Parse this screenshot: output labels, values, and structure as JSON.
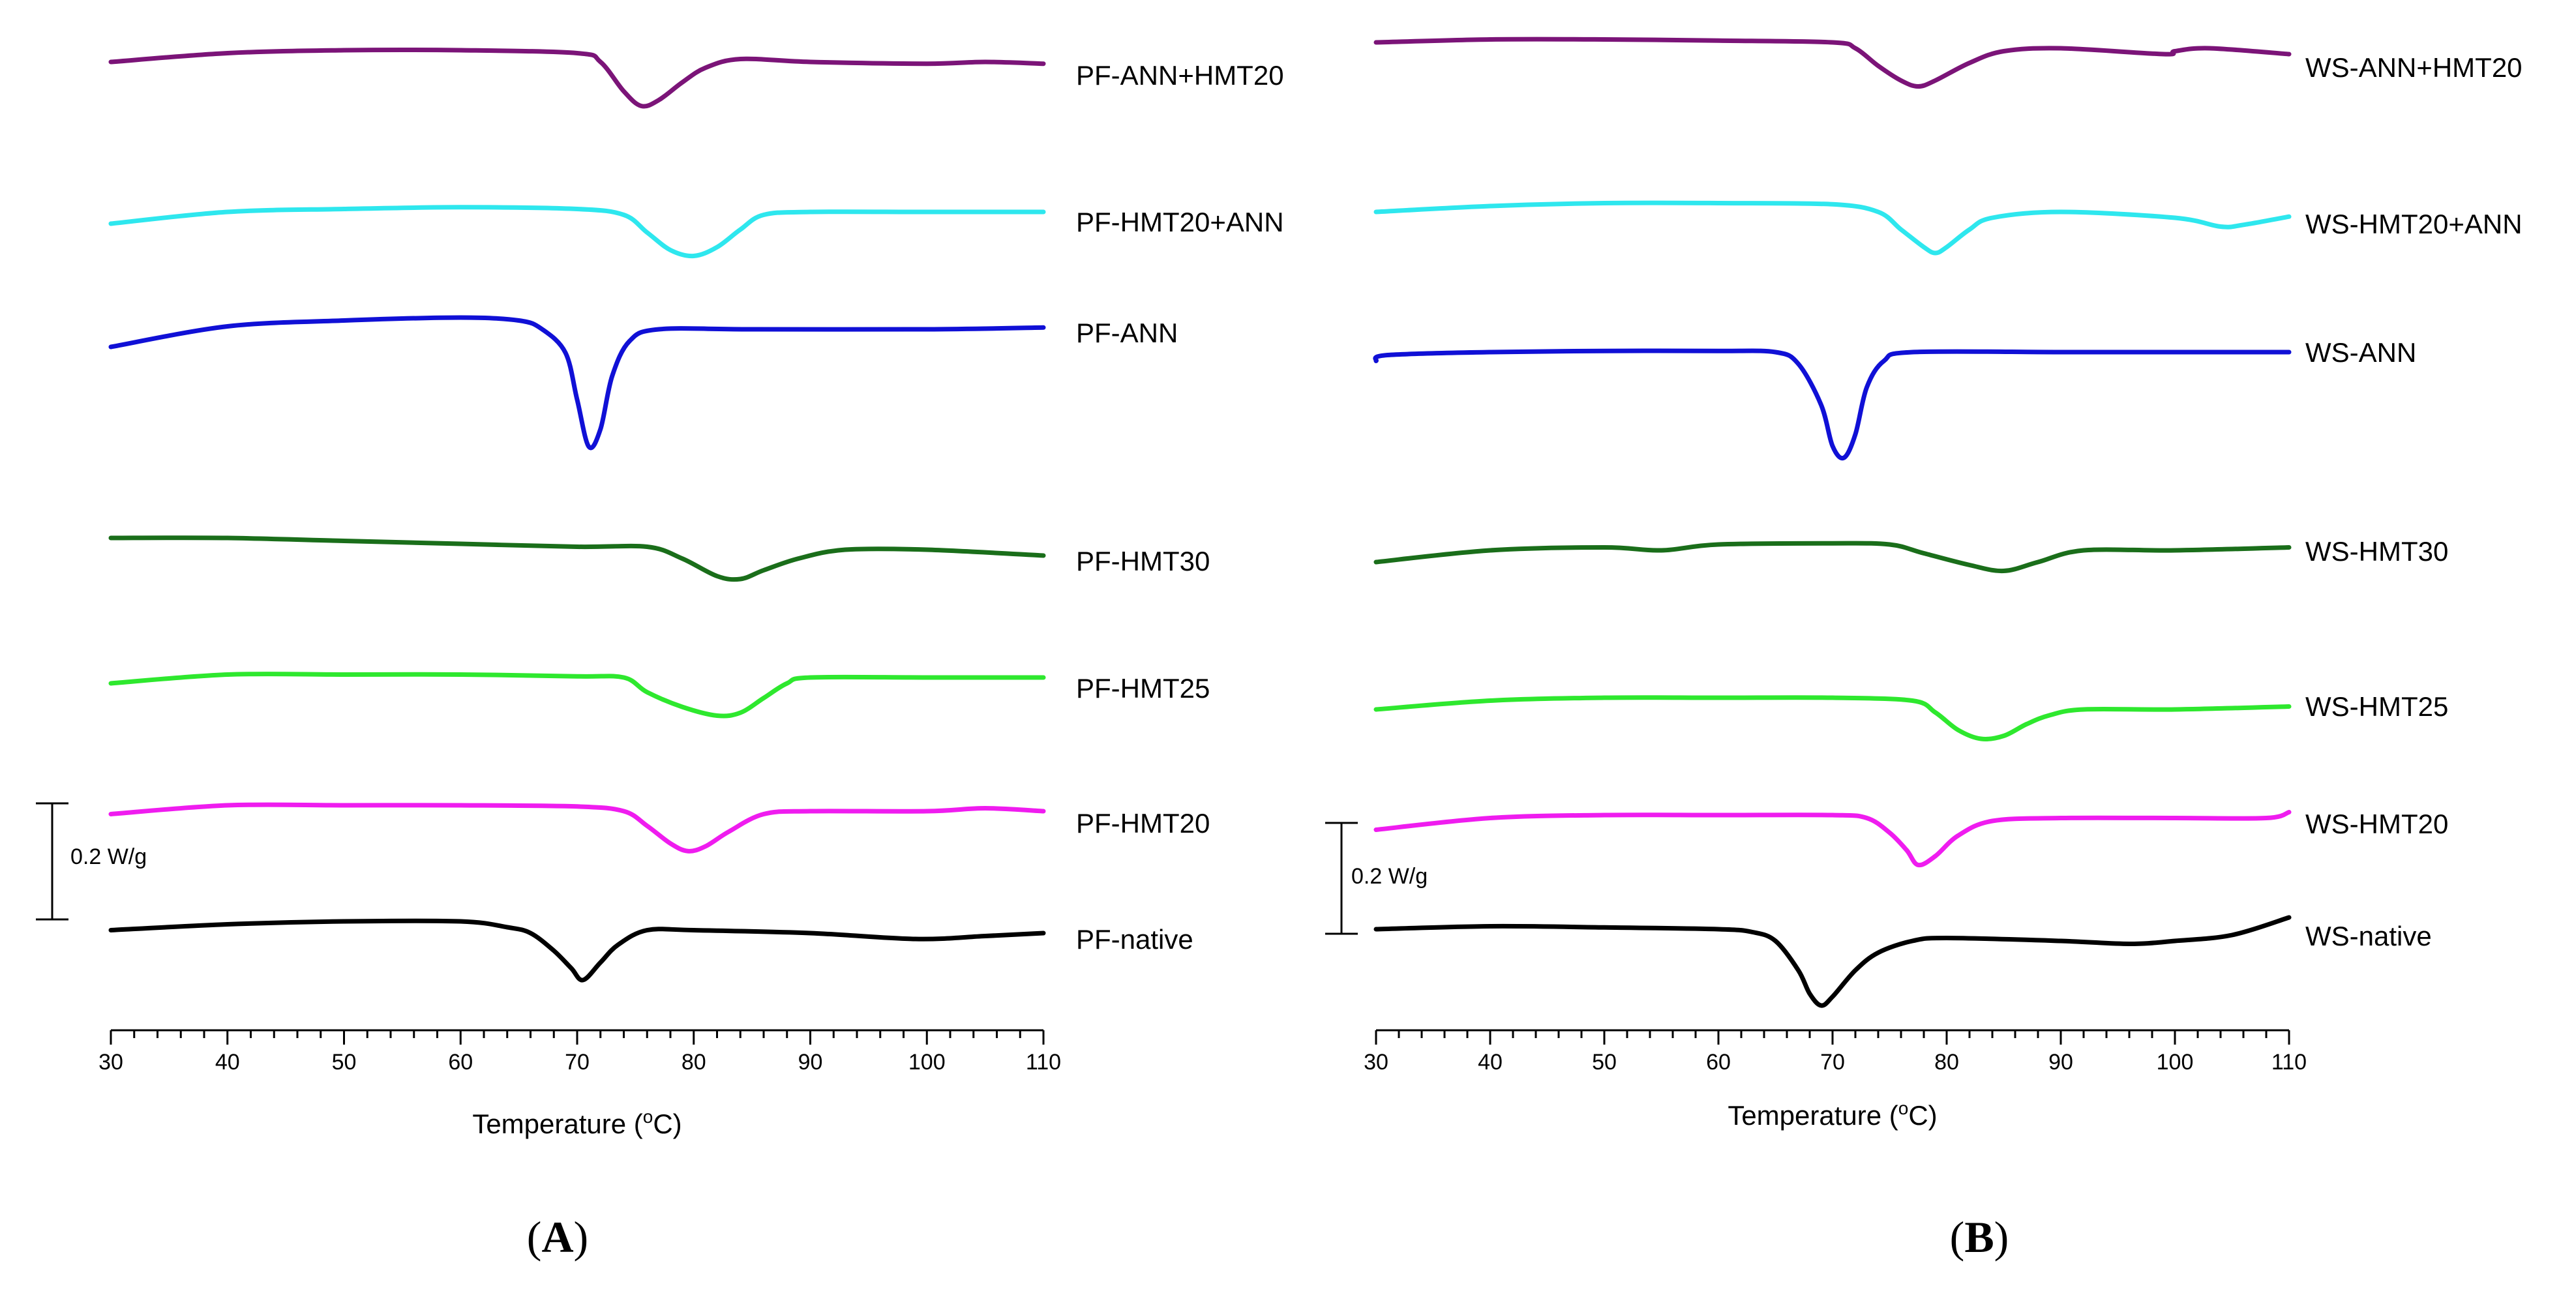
{
  "chart_data": [
    {
      "type": "line",
      "panel": "A",
      "panel_label": {
        "open": "(",
        "letter": "A",
        "close": ")"
      },
      "xlabel": "Temperature (",
      "xlabel_unit": "o",
      "xlabel_tail": "C)",
      "ylabel": "",
      "xlim": [
        30,
        110
      ],
      "x_ticks": [
        "30",
        "40",
        "50",
        "60",
        "70",
        "80",
        "90",
        "100",
        "110"
      ],
      "scale_bar": "0.2 W/g",
      "series": [
        {
          "name": "PF-ANN+HMT20",
          "color": "#7b1478",
          "points": [
            [
              30,
              0.0
            ],
            [
              40,
              0.015
            ],
            [
              50,
              0.02
            ],
            [
              60,
              0.02
            ],
            [
              70,
              0.015
            ],
            [
              72,
              0.0
            ],
            [
              74,
              -0.05
            ],
            [
              75.5,
              -0.075
            ],
            [
              77,
              -0.065
            ],
            [
              79,
              -0.035
            ],
            [
              81,
              -0.01
            ],
            [
              84,
              0.005
            ],
            [
              90,
              0.0
            ],
            [
              100,
              -0.003
            ],
            [
              105,
              0.0
            ],
            [
              110,
              -0.003
            ]
          ]
        },
        {
          "name": "PF-HMT20+ANN",
          "color": "#2ee7ee",
          "points": [
            [
              30,
              -0.02
            ],
            [
              40,
              0.0
            ],
            [
              50,
              0.005
            ],
            [
              60,
              0.008
            ],
            [
              70,
              0.005
            ],
            [
              74,
              -0.005
            ],
            [
              76,
              -0.035
            ],
            [
              78,
              -0.065
            ],
            [
              80,
              -0.075
            ],
            [
              82,
              -0.06
            ],
            [
              84,
              -0.03
            ],
            [
              86,
              -0.005
            ],
            [
              90,
              0.0
            ],
            [
              100,
              0.0
            ],
            [
              110,
              0.0
            ]
          ]
        },
        {
          "name": "PF-ANN",
          "color": "#1010d6",
          "points": [
            [
              30,
              -0.03
            ],
            [
              40,
              0.005
            ],
            [
              50,
              0.015
            ],
            [
              60,
              0.02
            ],
            [
              65,
              0.015
            ],
            [
              67,
              0.0
            ],
            [
              69,
              -0.04
            ],
            [
              70,
              -0.12
            ],
            [
              71,
              -0.2
            ],
            [
              72,
              -0.17
            ],
            [
              73,
              -0.08
            ],
            [
              74.5,
              -0.02
            ],
            [
              77,
              0.0
            ],
            [
              85,
              0.0
            ],
            [
              100,
              0.0
            ],
            [
              110,
              0.003
            ]
          ]
        },
        {
          "name": "PF-HMT30",
          "color": "#1a6e1a",
          "points": [
            [
              30,
              0.0
            ],
            [
              40,
              0.0
            ],
            [
              50,
              -0.005
            ],
            [
              60,
              -0.01
            ],
            [
              70,
              -0.015
            ],
            [
              76,
              -0.015
            ],
            [
              79,
              -0.035
            ],
            [
              82,
              -0.065
            ],
            [
              84,
              -0.07
            ],
            [
              86,
              -0.055
            ],
            [
              89,
              -0.035
            ],
            [
              93,
              -0.02
            ],
            [
              100,
              -0.02
            ],
            [
              110,
              -0.03
            ]
          ]
        },
        {
          "name": "PF-HMT25",
          "color": "#2ee82e",
          "points": [
            [
              30,
              -0.02
            ],
            [
              40,
              -0.005
            ],
            [
              50,
              -0.005
            ],
            [
              60,
              -0.005
            ],
            [
              70,
              -0.008
            ],
            [
              74,
              -0.01
            ],
            [
              76,
              -0.035
            ],
            [
              79,
              -0.06
            ],
            [
              82,
              -0.075
            ],
            [
              84,
              -0.07
            ],
            [
              86,
              -0.045
            ],
            [
              88,
              -0.02
            ],
            [
              90,
              -0.01
            ],
            [
              100,
              -0.01
            ],
            [
              110,
              -0.01
            ]
          ]
        },
        {
          "name": "PF-HMT20",
          "color": "#ef1cef",
          "points": [
            [
              30,
              -0.015
            ],
            [
              40,
              0.0
            ],
            [
              50,
              0.0
            ],
            [
              60,
              0.0
            ],
            [
              70,
              -0.002
            ],
            [
              74,
              -0.01
            ],
            [
              76,
              -0.035
            ],
            [
              78,
              -0.065
            ],
            [
              79.5,
              -0.078
            ],
            [
              81,
              -0.07
            ],
            [
              83,
              -0.045
            ],
            [
              86,
              -0.015
            ],
            [
              90,
              -0.01
            ],
            [
              100,
              -0.01
            ],
            [
              105,
              -0.005
            ],
            [
              110,
              -0.01
            ]
          ]
        },
        {
          "name": "PF-native",
          "color": "#000000",
          "points": [
            [
              30,
              -0.005
            ],
            [
              40,
              0.005
            ],
            [
              50,
              0.01
            ],
            [
              60,
              0.01
            ],
            [
              64,
              0.0
            ],
            [
              66,
              -0.01
            ],
            [
              68,
              -0.04
            ],
            [
              69.5,
              -0.07
            ],
            [
              70.5,
              -0.09
            ],
            [
              72,
              -0.06
            ],
            [
              73.5,
              -0.03
            ],
            [
              76,
              -0.005
            ],
            [
              80,
              -0.005
            ],
            [
              90,
              -0.01
            ],
            [
              99,
              -0.02
            ],
            [
              105,
              -0.015
            ],
            [
              110,
              -0.01
            ]
          ]
        }
      ]
    },
    {
      "type": "line",
      "panel": "B",
      "panel_label": {
        "open": "(",
        "letter": "B",
        "close": ")"
      },
      "xlabel": "Temperature (",
      "xlabel_unit": "o",
      "xlabel_tail": "C)",
      "ylabel": "",
      "xlim": [
        30,
        110
      ],
      "x_ticks": [
        "30",
        "40",
        "50",
        "60",
        "70",
        "80",
        "90",
        "100",
        "110"
      ],
      "scale_bar": "0.2 W/g",
      "series": [
        {
          "name": "WS-ANN+HMT20",
          "color": "#7b1478",
          "points": [
            [
              30,
              0.0
            ],
            [
              40,
              0.005
            ],
            [
              50,
              0.005
            ],
            [
              60,
              0.003
            ],
            [
              70,
              0.0
            ],
            [
              72,
              -0.01
            ],
            [
              74,
              -0.04
            ],
            [
              76,
              -0.065
            ],
            [
              77.5,
              -0.075
            ],
            [
              79,
              -0.065
            ],
            [
              82,
              -0.035
            ],
            [
              85,
              -0.015
            ],
            [
              90,
              -0.01
            ],
            [
              99,
              -0.02
            ],
            [
              100,
              -0.015
            ],
            [
              103,
              -0.01
            ],
            [
              110,
              -0.02
            ]
          ]
        },
        {
          "name": "WS-HMT20+ANN",
          "color": "#2ee7ee",
          "points": [
            [
              30,
              0.0
            ],
            [
              40,
              0.01
            ],
            [
              50,
              0.015
            ],
            [
              60,
              0.015
            ],
            [
              70,
              0.013
            ],
            [
              74,
              0.0
            ],
            [
              76,
              -0.03
            ],
            [
              78,
              -0.06
            ],
            [
              79,
              -0.07
            ],
            [
              80,
              -0.06
            ],
            [
              82,
              -0.03
            ],
            [
              84,
              -0.01
            ],
            [
              90,
              0.0
            ],
            [
              100,
              -0.01
            ],
            [
              104,
              -0.025
            ],
            [
              106,
              -0.022
            ],
            [
              110,
              -0.008
            ]
          ]
        },
        {
          "name": "WS-ANN",
          "color": "#1010d6",
          "points": [
            [
              30,
              -0.015
            ],
            [
              31,
              -0.005
            ],
            [
              40,
              0.0
            ],
            [
              50,
              0.002
            ],
            [
              60,
              0.002
            ],
            [
              65,
              0.0
            ],
            [
              67,
              -0.02
            ],
            [
              69,
              -0.09
            ],
            [
              70,
              -0.16
            ],
            [
              71,
              -0.18
            ],
            [
              72,
              -0.14
            ],
            [
              73,
              -0.06
            ],
            [
              74.5,
              -0.015
            ],
            [
              77,
              0.0
            ],
            [
              90,
              0.0
            ],
            [
              100,
              0.0
            ],
            [
              110,
              0.0
            ]
          ]
        },
        {
          "name": "WS-HMT30",
          "color": "#1a6e1a",
          "points": [
            [
              30,
              -0.03
            ],
            [
              40,
              -0.01
            ],
            [
              50,
              -0.005
            ],
            [
              55,
              -0.01
            ],
            [
              60,
              0.0
            ],
            [
              70,
              0.002
            ],
            [
              75,
              0.0
            ],
            [
              78,
              -0.015
            ],
            [
              82,
              -0.035
            ],
            [
              85,
              -0.045
            ],
            [
              88,
              -0.03
            ],
            [
              92,
              -0.01
            ],
            [
              100,
              -0.01
            ],
            [
              110,
              -0.005
            ]
          ]
        },
        {
          "name": "WS-HMT25",
          "color": "#2ee82e",
          "points": [
            [
              30,
              -0.02
            ],
            [
              40,
              -0.005
            ],
            [
              50,
              0.0
            ],
            [
              60,
              0.0
            ],
            [
              70,
              0.0
            ],
            [
              77,
              -0.005
            ],
            [
              79,
              -0.025
            ],
            [
              81,
              -0.055
            ],
            [
              83,
              -0.07
            ],
            [
              85,
              -0.065
            ],
            [
              87,
              -0.045
            ],
            [
              89,
              -0.03
            ],
            [
              92,
              -0.02
            ],
            [
              100,
              -0.02
            ],
            [
              110,
              -0.015
            ]
          ]
        },
        {
          "name": "WS-HMT20",
          "color": "#ef1cef",
          "points": [
            [
              30,
              -0.025
            ],
            [
              40,
              -0.005
            ],
            [
              50,
              0.0
            ],
            [
              60,
              0.0
            ],
            [
              70,
              0.0
            ],
            [
              73,
              -0.005
            ],
            [
              75,
              -0.03
            ],
            [
              76.5,
              -0.06
            ],
            [
              77.5,
              -0.085
            ],
            [
              79,
              -0.07
            ],
            [
              81,
              -0.035
            ],
            [
              84,
              -0.01
            ],
            [
              90,
              -0.005
            ],
            [
              100,
              -0.005
            ],
            [
              108,
              -0.005
            ],
            [
              110,
              0.005
            ]
          ]
        },
        {
          "name": "WS-native",
          "color": "#000000",
          "points": [
            [
              30,
              0.0
            ],
            [
              40,
              0.005
            ],
            [
              50,
              0.003
            ],
            [
              60,
              0.0
            ],
            [
              63,
              -0.005
            ],
            [
              65,
              -0.02
            ],
            [
              67,
              -0.07
            ],
            [
              68,
              -0.11
            ],
            [
              69,
              -0.13
            ],
            [
              70,
              -0.115
            ],
            [
              72,
              -0.07
            ],
            [
              74,
              -0.04
            ],
            [
              77,
              -0.02
            ],
            [
              80,
              -0.015
            ],
            [
              90,
              -0.02
            ],
            [
              96,
              -0.025
            ],
            [
              100,
              -0.02
            ],
            [
              105,
              -0.01
            ],
            [
              110,
              0.02
            ]
          ]
        }
      ]
    }
  ]
}
